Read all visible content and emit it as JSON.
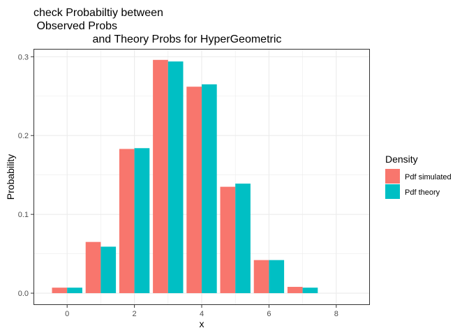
{
  "chart_data": {
    "type": "bar",
    "title_lines": [
      "check Probabiltiy between",
      " Observed Probs",
      "                   and Theory Probs for HyperGeometric"
    ],
    "xlabel": "x",
    "ylabel": "Probability",
    "xlim": [
      -1,
      9
    ],
    "ylim": [
      -0.015,
      0.31
    ],
    "x_ticks": [
      0,
      2,
      4,
      6,
      8
    ],
    "y_ticks": [
      0.0,
      0.1,
      0.2,
      0.3
    ],
    "y_tick_labels": [
      "0.0",
      "0.1",
      "0.2",
      "0.3"
    ],
    "x": [
      0,
      1,
      2,
      3,
      4,
      5,
      6,
      7
    ],
    "series": [
      {
        "name": "Pdf simulated",
        "color": "#F8766D",
        "values": [
          0.007,
          0.065,
          0.183,
          0.296,
          0.262,
          0.135,
          0.042,
          0.008
        ]
      },
      {
        "name": "Pdf theory",
        "color": "#00BFC4",
        "values": [
          0.007,
          0.059,
          0.184,
          0.294,
          0.265,
          0.139,
          0.042,
          0.007
        ]
      }
    ],
    "legend": {
      "title": "Density",
      "position": "right"
    },
    "grid": true,
    "panel_border": true
  }
}
